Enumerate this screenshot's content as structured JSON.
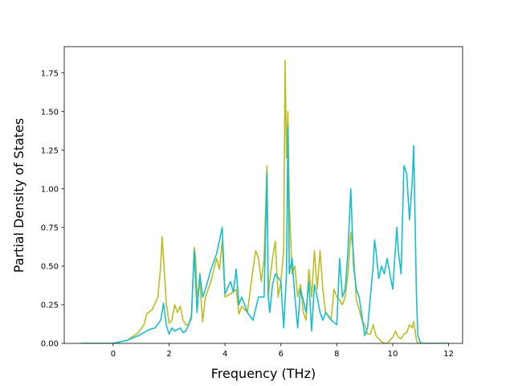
{
  "chart_data": {
    "type": "line",
    "xlabel": "Frequency (THz)",
    "ylabel": "Partial Density of States",
    "xlim": [
      -1.75,
      12.5
    ],
    "ylim": [
      0,
      1.92
    ],
    "xticks": [
      0,
      2,
      4,
      6,
      8,
      10,
      12
    ],
    "yticks": [
      0.0,
      0.25,
      0.5,
      0.75,
      1.0,
      1.25,
      1.5,
      1.75
    ],
    "ytick_labels": [
      "0.00",
      "0.25",
      "0.50",
      "0.75",
      "1.00",
      "1.25",
      "1.50",
      "1.75"
    ],
    "grid": false,
    "series": [
      {
        "color": "#bcbd22",
        "x": [
          -1.15,
          0.0,
          0.5,
          0.9,
          1.1,
          1.2,
          1.4,
          1.6,
          1.7,
          1.75,
          1.82,
          1.9,
          2.0,
          2.1,
          2.2,
          2.3,
          2.4,
          2.5,
          2.6,
          2.7,
          2.8,
          2.9,
          2.95,
          3.0,
          3.1,
          3.2,
          3.3,
          3.5,
          3.7,
          3.8,
          3.9,
          4.0,
          4.2,
          4.4,
          4.5,
          4.6,
          4.8,
          5.0,
          5.1,
          5.2,
          5.3,
          5.4,
          5.5,
          5.55,
          5.6,
          5.7,
          5.8,
          5.9,
          6.0,
          6.1,
          6.15,
          6.2,
          6.25,
          6.3,
          6.4,
          6.5,
          6.6,
          6.7,
          6.8,
          6.9,
          7.0,
          7.1,
          7.2,
          7.3,
          7.4,
          7.5,
          7.6,
          7.7,
          7.8,
          7.9,
          8.0,
          8.1,
          8.2,
          8.3,
          8.4,
          8.5,
          8.6,
          8.7,
          8.8,
          8.9,
          9.0,
          9.1,
          9.2,
          9.3,
          9.4,
          9.5,
          9.6,
          9.7,
          9.8,
          9.9,
          10.0,
          10.1,
          10.2,
          10.3,
          10.4,
          10.5,
          10.6,
          10.7,
          10.75,
          10.8,
          10.85,
          10.9,
          11.0,
          11.5,
          12.0
        ],
        "y": [
          0.0,
          0.0,
          0.02,
          0.07,
          0.12,
          0.19,
          0.22,
          0.3,
          0.5,
          0.69,
          0.5,
          0.26,
          0.13,
          0.15,
          0.25,
          0.2,
          0.24,
          0.15,
          0.12,
          0.12,
          0.16,
          0.62,
          0.55,
          0.3,
          0.4,
          0.14,
          0.3,
          0.4,
          0.55,
          0.48,
          0.66,
          0.3,
          0.32,
          0.35,
          0.19,
          0.24,
          0.2,
          0.48,
          0.6,
          0.55,
          0.4,
          0.55,
          1.15,
          0.3,
          0.4,
          0.55,
          0.66,
          0.3,
          0.4,
          0.6,
          1.83,
          1.2,
          1.5,
          0.9,
          0.45,
          0.5,
          0.3,
          0.38,
          0.2,
          0.15,
          0.48,
          0.3,
          0.6,
          0.35,
          0.6,
          0.35,
          0.2,
          0.18,
          0.16,
          0.35,
          0.3,
          0.28,
          0.25,
          0.3,
          0.45,
          0.72,
          0.58,
          0.28,
          0.22,
          0.15,
          0.12,
          0.06,
          0.06,
          0.12,
          0.05,
          0.03,
          0.01,
          0.0,
          0.0,
          0.02,
          0.04,
          0.08,
          0.04,
          0.03,
          0.06,
          0.07,
          0.12,
          0.1,
          0.14,
          0.08,
          0.02,
          0.0,
          0.0,
          0.0,
          0.0
        ]
      },
      {
        "color": "#17becf",
        "x": [
          -1.15,
          0.0,
          0.5,
          0.9,
          1.1,
          1.3,
          1.5,
          1.7,
          1.8,
          1.9,
          2.0,
          2.1,
          2.2,
          2.3,
          2.4,
          2.5,
          2.6,
          2.7,
          2.8,
          2.9,
          3.0,
          3.1,
          3.2,
          3.3,
          3.5,
          3.7,
          3.9,
          4.0,
          4.2,
          4.3,
          4.4,
          4.5,
          4.6,
          4.8,
          5.0,
          5.2,
          5.4,
          5.5,
          5.55,
          5.6,
          5.7,
          5.8,
          6.0,
          6.1,
          6.2,
          6.25,
          6.3,
          6.4,
          6.5,
          6.6,
          6.7,
          6.8,
          6.9,
          7.0,
          7.1,
          7.2,
          7.3,
          7.4,
          7.5,
          7.6,
          7.8,
          8.0,
          8.1,
          8.2,
          8.3,
          8.4,
          8.5,
          8.6,
          8.7,
          8.8,
          9.0,
          9.1,
          9.2,
          9.3,
          9.35,
          9.4,
          9.5,
          9.6,
          9.7,
          9.8,
          9.9,
          10.0,
          10.1,
          10.15,
          10.2,
          10.3,
          10.4,
          10.5,
          10.6,
          10.7,
          10.75,
          10.8,
          10.85,
          10.9,
          11.0,
          11.5,
          12.0
        ],
        "y": [
          0.0,
          0.0,
          0.02,
          0.05,
          0.07,
          0.09,
          0.1,
          0.15,
          0.26,
          0.12,
          0.06,
          0.1,
          0.08,
          0.09,
          0.1,
          0.07,
          0.08,
          0.12,
          0.18,
          0.6,
          0.2,
          0.45,
          0.3,
          0.35,
          0.48,
          0.58,
          0.75,
          0.32,
          0.4,
          0.33,
          0.48,
          0.25,
          0.3,
          0.2,
          0.15,
          0.3,
          0.3,
          1.1,
          0.3,
          0.2,
          0.38,
          0.45,
          0.4,
          0.1,
          0.45,
          1.4,
          0.45,
          0.55,
          0.3,
          0.1,
          0.35,
          0.28,
          0.2,
          0.4,
          0.08,
          0.38,
          0.3,
          0.2,
          0.15,
          0.2,
          0.15,
          0.12,
          0.55,
          0.3,
          0.35,
          0.6,
          1.0,
          0.5,
          0.35,
          0.3,
          0.05,
          0.1,
          0.3,
          0.5,
          0.67,
          0.6,
          0.42,
          0.5,
          0.45,
          0.55,
          0.45,
          0.35,
          0.62,
          0.75,
          0.6,
          0.45,
          1.15,
          1.1,
          0.8,
          1.05,
          1.28,
          0.8,
          0.3,
          0.05,
          0.0,
          0.0,
          0.0
        ]
      }
    ]
  }
}
